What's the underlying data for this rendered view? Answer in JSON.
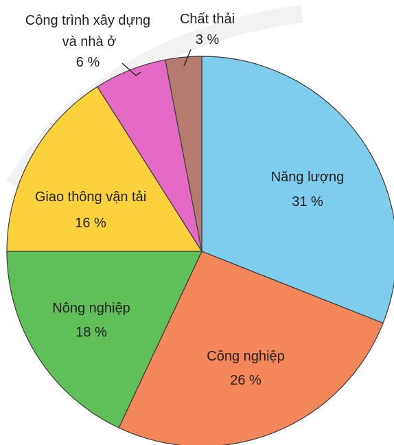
{
  "chart_data": {
    "type": "pie",
    "start_angle_deg": 0,
    "direction": "clockwise",
    "slices": [
      {
        "label": "Năng lượng",
        "value": 31,
        "value_label": "31 %",
        "color": "#7fcdec"
      },
      {
        "label": "Công nghiệp",
        "value": 26,
        "value_label": "26 %",
        "color": "#f4875a"
      },
      {
        "label": "Nông nghiệp",
        "value": 18,
        "value_label": "18 %",
        "color": "#5fc05a"
      },
      {
        "label": "Giao thông vận tải",
        "value": 16,
        "value_label": "16 %",
        "color": "#fbd23c"
      },
      {
        "label_lines": [
          "Công trình xây dựng",
          "và nhà ở"
        ],
        "value": 6,
        "value_label": "6 %",
        "color": "#e46ac6"
      },
      {
        "label": "Chất thải",
        "value": 3,
        "value_label": "3 %",
        "color": "#b57b6e"
      }
    ]
  }
}
